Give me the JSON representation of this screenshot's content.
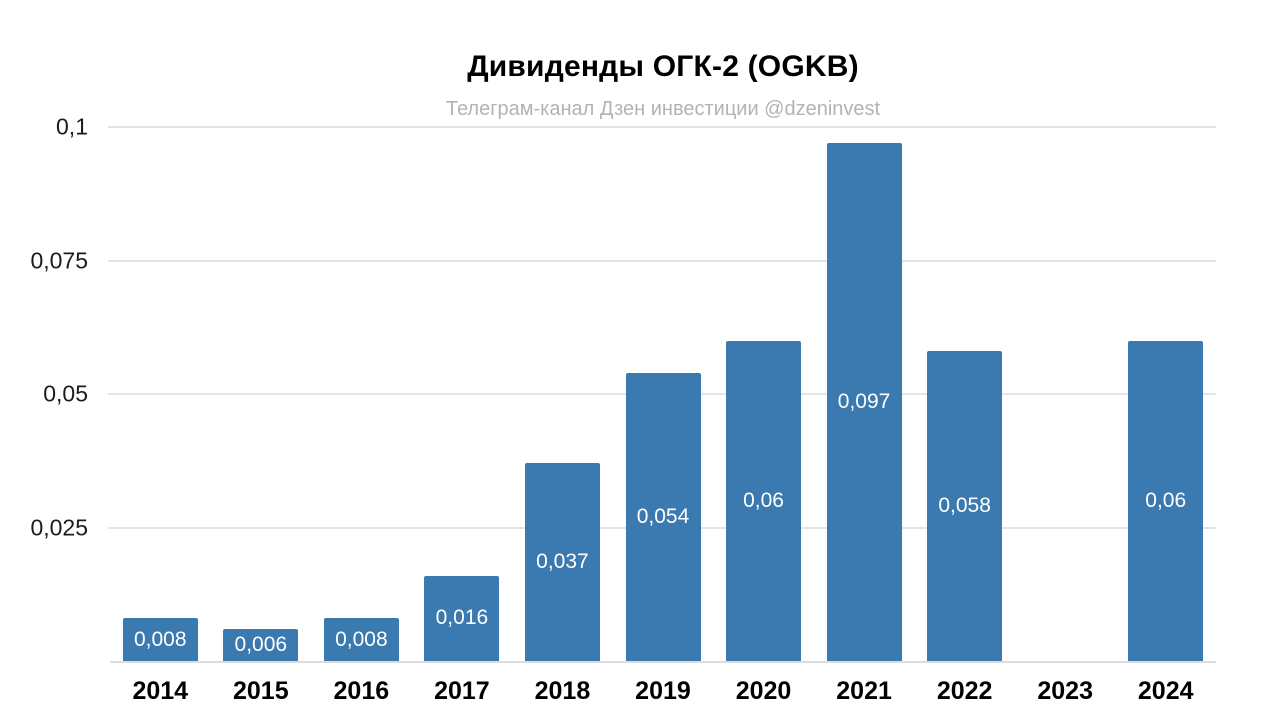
{
  "title": "Дивиденды ОГК-2 (OGKB)",
  "subtitle": "Телеграм-канал Дзен инвестиции @dzeninvest",
  "chart_data": {
    "type": "bar",
    "title": "Дивиденды ОГК-2 (OGKB)",
    "subtitle": "Телеграм-канал Дзен инвестиции @dzeninvest",
    "categories": [
      "2014",
      "2015",
      "2016",
      "2017",
      "2018",
      "2019",
      "2020",
      "2021",
      "2022",
      "2023",
      "2024"
    ],
    "values": [
      0.008,
      0.006,
      0.008,
      0.016,
      0.037,
      0.054,
      0.06,
      0.097,
      0.058,
      0,
      0.06
    ],
    "value_labels": [
      "0,008",
      "0,006",
      "0,008",
      "0,016",
      "0,037",
      "0,054",
      "0,06",
      "0,097",
      "0,058",
      "",
      "0,06"
    ],
    "xlabel": "",
    "ylabel": "",
    "ylim": [
      0,
      0.1
    ],
    "yticks": [
      {
        "value": 0.025,
        "label": "0,025"
      },
      {
        "value": 0.05,
        "label": "0,05"
      },
      {
        "value": 0.075,
        "label": "0,075"
      },
      {
        "value": 0.1,
        "label": "0,1"
      }
    ],
    "grid": true,
    "legend": false,
    "decimal_separator": ",",
    "bar_color": "#3a7ab0"
  },
  "colors": {
    "background": "#ffffff",
    "bar": "#3a7ab0",
    "gridline": "#e4e4e4",
    "baseline": "#dcdcdc",
    "title_text": "#000000",
    "subtitle_text": "#b3b3b3",
    "ytick_text": "#1b1b1b",
    "xtick_text": "#000000",
    "bar_label_text": "#ffffff"
  }
}
